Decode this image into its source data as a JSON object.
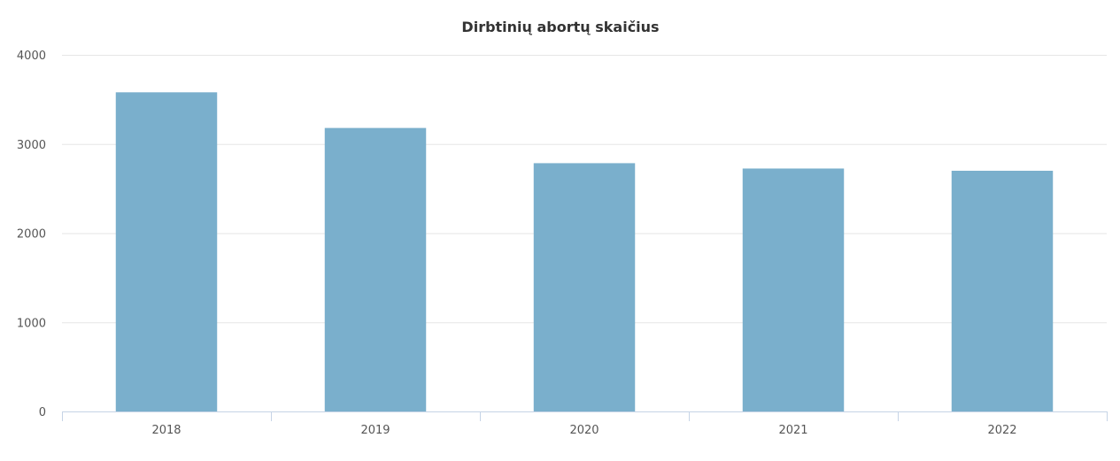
{
  "chart_data": {
    "type": "bar",
    "title": "Dirbtinių abortų skaičius",
    "xlabel": "",
    "ylabel": "",
    "categories": [
      "2018",
      "2019",
      "2020",
      "2021",
      "2022"
    ],
    "values": [
      3580,
      3180,
      2785,
      2725,
      2700
    ],
    "ylim": [
      0,
      4000
    ],
    "yticks": [
      "0",
      "1000",
      "2000",
      "3000",
      "4000"
    ],
    "grid": true,
    "legend": "none",
    "bar_color": "#7aafcc"
  }
}
